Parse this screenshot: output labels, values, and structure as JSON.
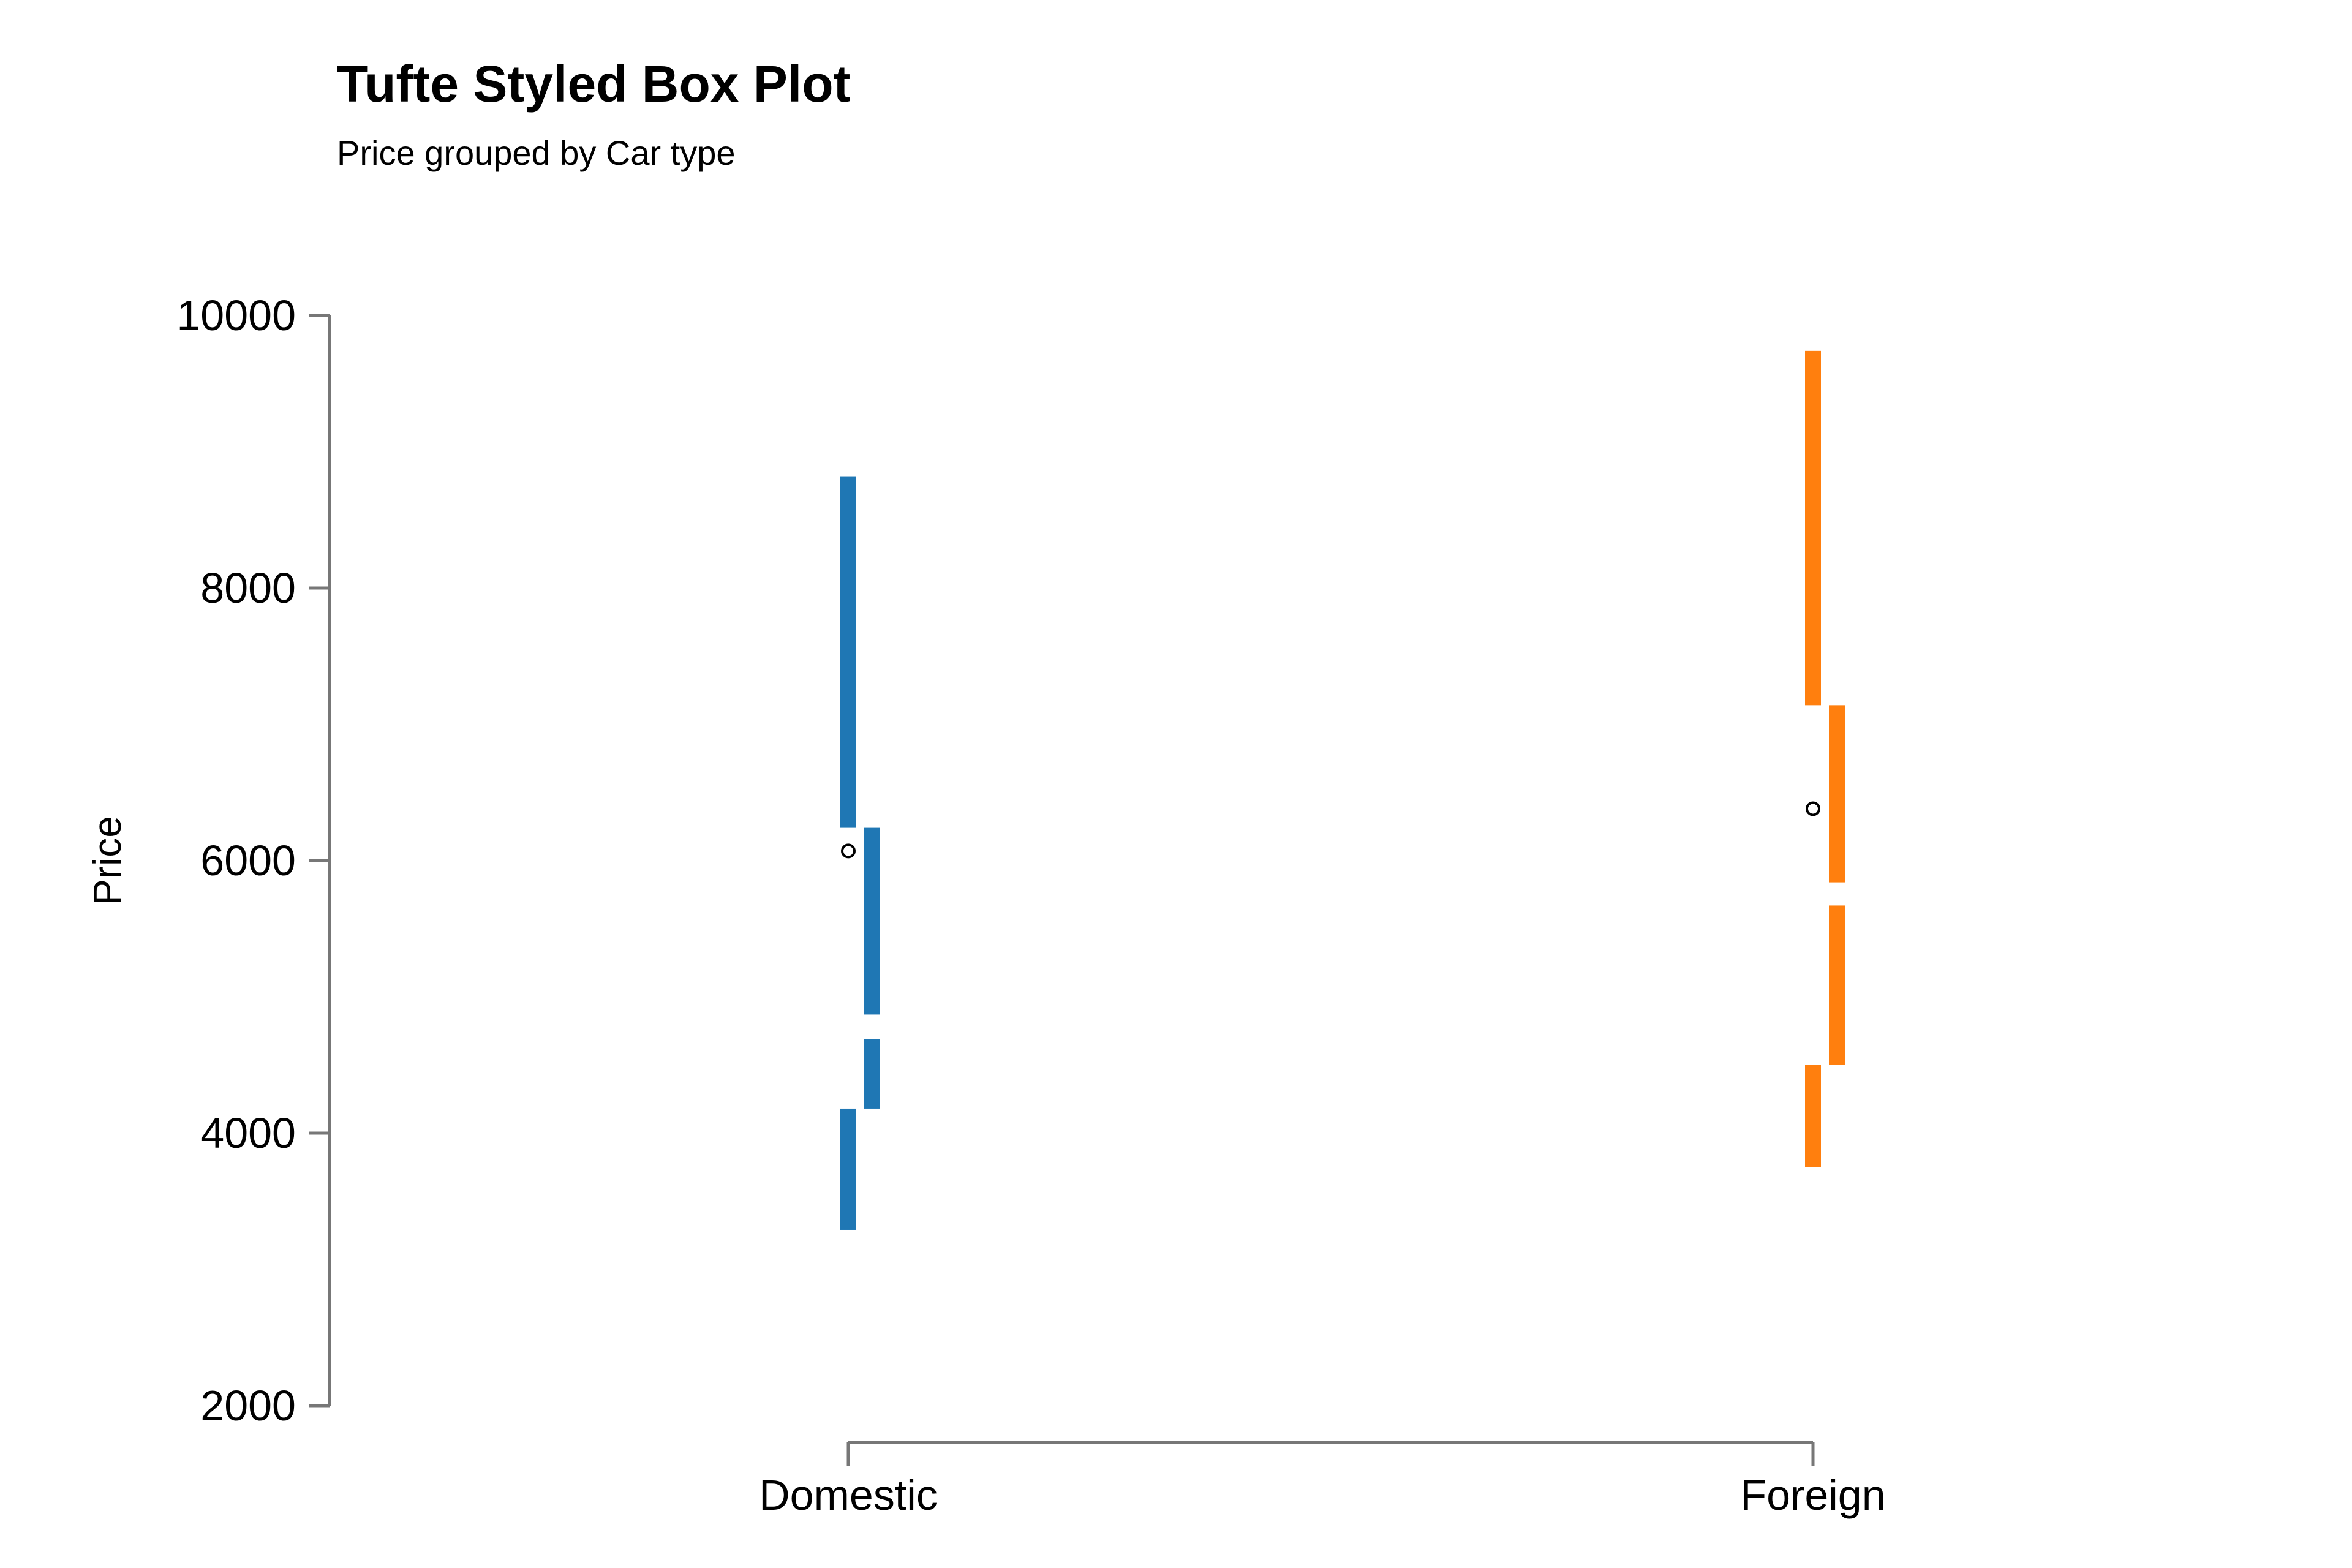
{
  "chart_data": {
    "type": "box",
    "style": "tufte",
    "title": "Tufte Styled Box Plot",
    "subtitle": "Price grouped by Car type",
    "xlabel": "",
    "ylabel": "Price",
    "categories": [
      "Domestic",
      "Foreign"
    ],
    "ylim": [
      2000,
      10000
    ],
    "yticks": [
      2000,
      4000,
      6000,
      8000,
      10000
    ],
    "grid": false,
    "legend": "none",
    "boxes": [
      {
        "category": "Domestic",
        "color": "#1f77b4",
        "whisker_low": 3290,
        "q1": 4180,
        "ci_low": 4690,
        "ci_high": 4870,
        "q3": 6240,
        "whisker_high": 8820,
        "mean": 6070
      },
      {
        "category": "Foreign",
        "color": "#ff7f0e",
        "whisker_low": 3750,
        "q1": 4500,
        "ci_low": 5670,
        "ci_high": 5840,
        "q3": 7140,
        "whisker_high": 9740,
        "mean": 6380
      }
    ]
  },
  "colors": {
    "axis": "#777777",
    "mean_marker": "#000000"
  }
}
